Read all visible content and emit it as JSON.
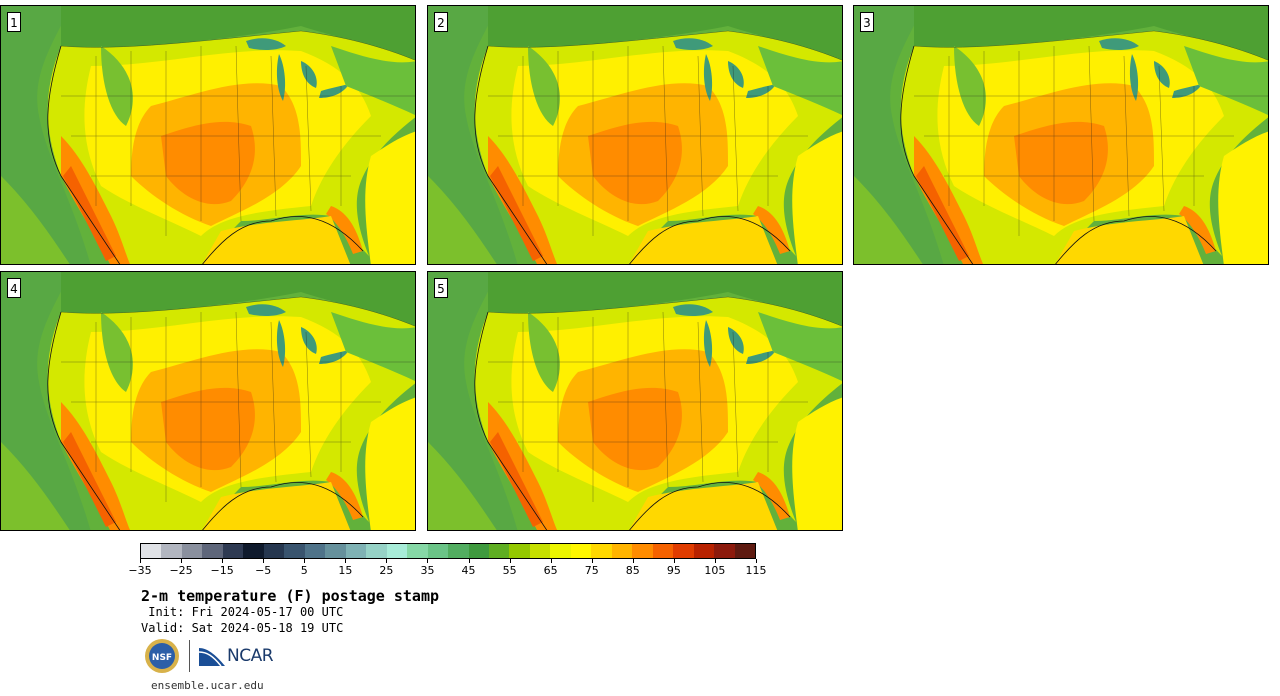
{
  "panels": [
    {
      "label": "1"
    },
    {
      "label": "2"
    },
    {
      "label": "3"
    },
    {
      "label": "4"
    },
    {
      "label": "5"
    }
  ],
  "colorbar": {
    "colors": [
      "#e0e2e6",
      "#b2b6c0",
      "#8a909e",
      "#5e667a",
      "#2e3a52",
      "#0f1a2c",
      "#26374f",
      "#39546e",
      "#4f7389",
      "#66919c",
      "#7fb2b4",
      "#96d2c6",
      "#a8ecd8",
      "#86d8a6",
      "#6bc487",
      "#52ad60",
      "#3f9a3e",
      "#5fae22",
      "#94c800",
      "#c6e000",
      "#ecf500",
      "#fff700",
      "#ffd800",
      "#ffb400",
      "#ff8c00",
      "#f56200",
      "#e03c00",
      "#b82200",
      "#8c1a0c",
      "#5e1a10"
    ],
    "tick_labels": [
      "−35",
      "−25",
      "−15",
      "−5",
      "5",
      "15",
      "25",
      "35",
      "45",
      "55",
      "65",
      "75",
      "85",
      "95",
      "105",
      "115"
    ]
  },
  "title": "2-m temperature (F) postage stamp",
  "init": " Init: Fri 2024-05-17 00 UTC",
  "valid": "Valid: Sat 2024-05-18 19 UTC",
  "logos": {
    "nsf_text": "NSF",
    "ncar_text": "NCAR"
  },
  "website": "ensemble.ucar.edu"
}
